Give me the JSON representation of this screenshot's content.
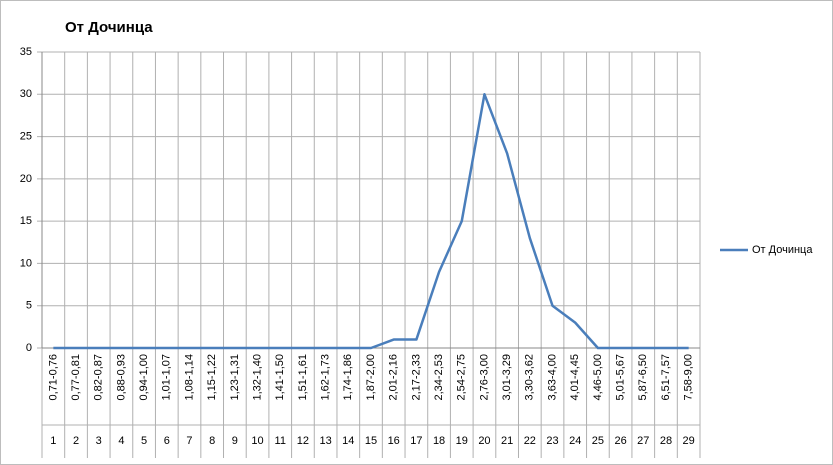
{
  "chart_data": {
    "type": "line",
    "title": "От Дочинца",
    "categories": [
      "0,71-0,76",
      "0,77-0,81",
      "0,82-0,87",
      "0,88-0,93",
      "0,94-1,00",
      "1,01-1,07",
      "1,08-1,14",
      "1,15-1,22",
      "1,23-1,31",
      "1,32-1,40",
      "1,41-1,50",
      "1,51-1,61",
      "1,62-1,73",
      "1,74-1,86",
      "1,87-2,00",
      "2,01-2,16",
      "2,17-2,33",
      "2,34-2,53",
      "2,54-2,75",
      "2,76-3,00",
      "3,01-3,29",
      "3,30-3,62",
      "3,63-4,00",
      "4,01-4,45",
      "4,46-5,00",
      "5,01-5,67",
      "5,87-6,50",
      "6,51-7,57",
      "7,58-9,00"
    ],
    "category_numbers": [
      1,
      2,
      3,
      4,
      5,
      6,
      7,
      8,
      9,
      10,
      11,
      12,
      13,
      14,
      15,
      16,
      17,
      18,
      19,
      20,
      21,
      22,
      23,
      24,
      25,
      26,
      27,
      28,
      29
    ],
    "series": [
      {
        "name": "От Дочинца",
        "color": "#4a7ebb",
        "values": [
          0,
          0,
          0,
          0,
          0,
          0,
          0,
          0,
          0,
          0,
          0,
          0,
          0,
          0,
          0,
          1,
          1,
          9,
          15,
          30,
          23,
          13,
          5,
          3,
          0,
          0,
          0,
          0,
          0
        ]
      }
    ],
    "ylim": [
      0,
      35
    ],
    "yticks": [
      0,
      5,
      10,
      15,
      20,
      25,
      30,
      35
    ],
    "grid": true,
    "legend": "right"
  }
}
